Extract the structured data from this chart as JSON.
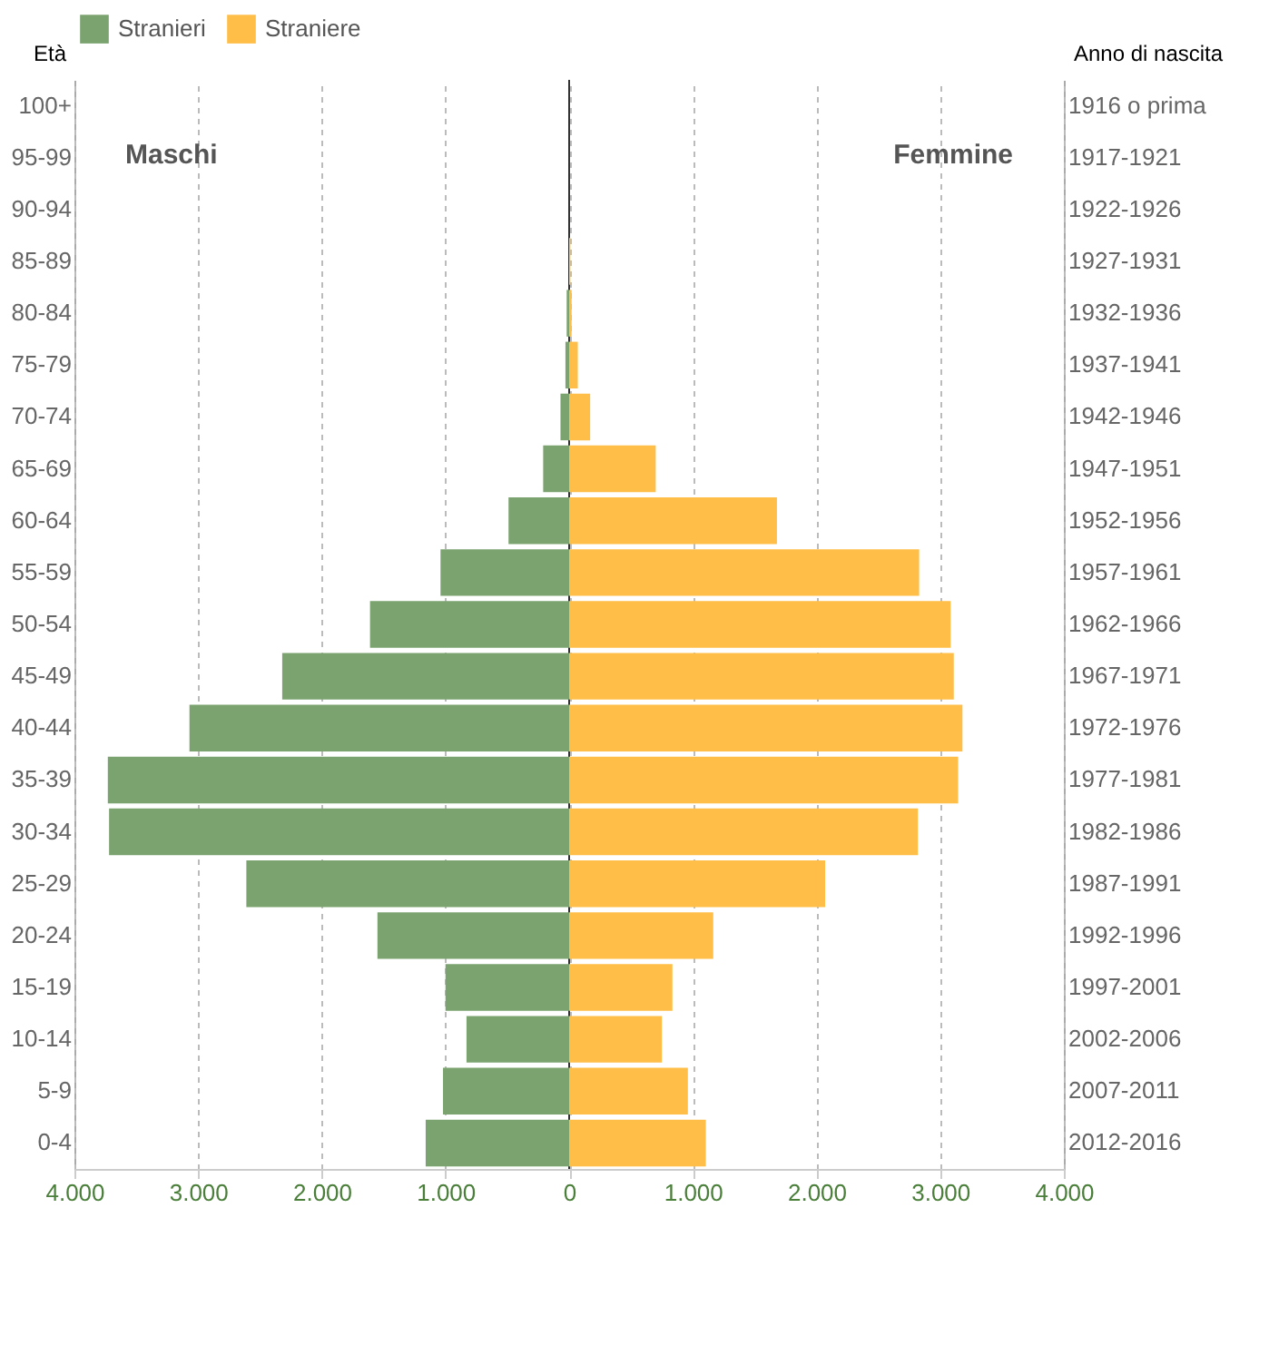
{
  "chart_data": {
    "type": "bar",
    "orientation": "horizontal",
    "ylabel": "Età",
    "y2label": "Anno di nascita",
    "annotations": [
      "Maschi",
      "Femmine"
    ],
    "categories": [
      "100+",
      "95-99",
      "90-94",
      "85-89",
      "80-84",
      "75-79",
      "70-74",
      "65-69",
      "60-64",
      "55-59",
      "50-54",
      "45-49",
      "40-44",
      "35-39",
      "30-34",
      "25-29",
      "20-24",
      "15-19",
      "10-14",
      "5-9",
      "0-4"
    ],
    "y2_categories": [
      "1916 o prima",
      "1917-1921",
      "1922-1926",
      "1927-1931",
      "1932-1936",
      "1937-1941",
      "1942-1946",
      "1947-1951",
      "1952-1956",
      "1957-1961",
      "1962-1966",
      "1967-1971",
      "1972-1976",
      "1977-1981",
      "1982-1986",
      "1987-1991",
      "1992-1996",
      "1997-2001",
      "2002-2006",
      "2007-2011",
      "2012-2016"
    ],
    "series": [
      {
        "name": "Stranieri",
        "color": "#7ba36f",
        "values": [
          null,
          null,
          null,
          null,
          -20,
          -30,
          -70,
          -210,
          -490,
          -1040,
          -1610,
          -2320,
          -3070,
          -3730,
          -3720,
          -2610,
          -1550,
          -1000,
          -830,
          -1020,
          -1160
        ]
      },
      {
        "name": "Straniere",
        "color": "#ffbe47",
        "axis": "y2",
        "values": [
          0,
          0,
          0,
          10,
          20,
          70,
          170,
          700,
          1680,
          2830,
          3085,
          3110,
          3180,
          3145,
          2820,
          2070,
          1165,
          835,
          750,
          960,
          1105
        ]
      }
    ],
    "xlim": [
      -4000,
      4000
    ],
    "xticks": [
      {
        "value": -4000,
        "label": "4.000"
      },
      {
        "value": -3000,
        "label": "3.000"
      },
      {
        "value": -2000,
        "label": "2.000"
      },
      {
        "value": -1000,
        "label": "1.000"
      },
      0,
      {
        "value": 1000,
        "label": "1.000"
      },
      {
        "value": 2000,
        "label": "2.000"
      },
      {
        "value": 3000,
        "label": "3.000"
      },
      {
        "value": 4000,
        "label": "4.000"
      }
    ],
    "ref_lines": [
      {
        "axis": "x",
        "value": 0,
        "color": "#333333"
      }
    ],
    "grid": "x",
    "legend": "top",
    "stacked": true
  }
}
